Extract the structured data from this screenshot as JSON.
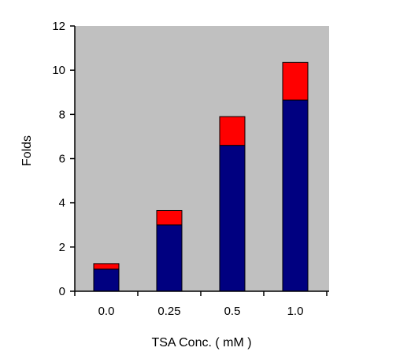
{
  "chart_data": {
    "type": "bar",
    "stacked": true,
    "categories": [
      "0.0",
      "0.25",
      "0.5",
      "1.0"
    ],
    "series": [
      {
        "values": [
          1.0,
          3.0,
          6.6,
          8.65
        ],
        "color": "#000080"
      },
      {
        "values": [
          0.25,
          0.65,
          1.3,
          1.7
        ],
        "color": "#ff0000"
      }
    ],
    "title": "",
    "xlabel": "TSA Conc. ( mM )",
    "ylabel": "Folds",
    "ylim": [
      0,
      12
    ],
    "yticks": [
      0,
      2,
      4,
      6,
      8,
      10,
      12
    ],
    "plot_background": "#c0c0c0",
    "grid": false,
    "legend": "none"
  }
}
